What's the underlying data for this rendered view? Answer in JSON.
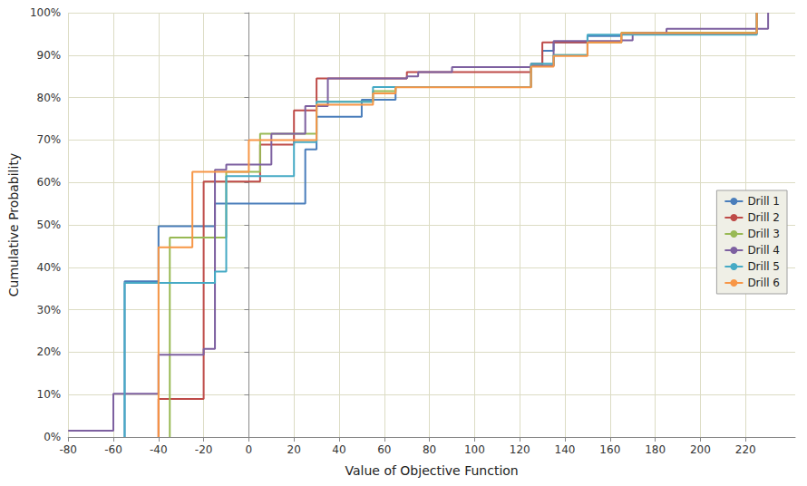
{
  "chart_data": {
    "type": "step_line",
    "x_label": "Value of Objective Function",
    "y_label": "Cumulative Probability",
    "xlim": [
      -80,
      242
    ],
    "xticks": [
      -80,
      -60,
      -40,
      -20,
      0,
      20,
      40,
      60,
      80,
      100,
      120,
      140,
      160,
      180,
      200,
      220
    ],
    "ylim": [
      0,
      100
    ],
    "yticks": [
      {
        "value": 0,
        "label": "0%"
      },
      {
        "value": 10,
        "label": "10%"
      },
      {
        "value": 20,
        "label": "20%"
      },
      {
        "value": 30,
        "label": "30%"
      },
      {
        "value": 40,
        "label": "40%"
      },
      {
        "value": 50,
        "label": "50%"
      },
      {
        "value": 60,
        "label": "60%"
      },
      {
        "value": 70,
        "label": "70%"
      },
      {
        "value": 80,
        "label": "80%"
      },
      {
        "value": 90,
        "label": "90%"
      },
      {
        "value": 100,
        "label": "100%"
      }
    ],
    "grid": true,
    "legend": "right",
    "series": [
      {
        "name": "Drill 1",
        "color": "#4a7ebb",
        "x": [
          -55,
          -55,
          -40,
          -15,
          25,
          30,
          50,
          65,
          125,
          130,
          135,
          150,
          165,
          225
        ],
        "values": [
          0,
          36.7,
          49.7,
          55,
          67.8,
          75.5,
          79.5,
          82.5,
          87.5,
          91,
          93,
          94.5,
          95,
          100
        ]
      },
      {
        "name": "Drill 2",
        "color": "#be4b48",
        "x": [
          -40,
          -40,
          -20,
          5,
          20,
          30,
          70,
          125,
          130,
          165,
          225
        ],
        "values": [
          0,
          9,
          60.2,
          68.9,
          77,
          84.5,
          86,
          88,
          93,
          95.2,
          100
        ]
      },
      {
        "name": "Drill 3",
        "color": "#98b954",
        "x": [
          -35,
          -35,
          -10,
          5,
          30,
          55,
          65,
          125,
          135,
          150,
          165,
          225
        ],
        "values": [
          0,
          47,
          62.5,
          71.5,
          79,
          81.5,
          82.5,
          87.5,
          90,
          93,
          95.3,
          100
        ]
      },
      {
        "name": "Drill 4",
        "color": "#7d60a0",
        "x": [
          -80,
          -60,
          -40,
          -20,
          -15,
          -10,
          10,
          25,
          35,
          70,
          75,
          90,
          125,
          135,
          165,
          170,
          185,
          230
        ],
        "values": [
          1.5,
          10.2,
          19.4,
          20.8,
          63,
          64.2,
          71.5,
          78,
          84.5,
          85,
          86,
          87.2,
          87.5,
          93.3,
          93.5,
          95.2,
          96.2,
          100
        ]
      },
      {
        "name": "Drill 5",
        "color": "#46aac5",
        "x": [
          -55,
          -55,
          -15,
          -10,
          20,
          30,
          55,
          125,
          135,
          150,
          225
        ],
        "values": [
          0,
          36.3,
          39,
          61.5,
          69.5,
          79,
          82.5,
          88,
          90,
          94.8,
          100
        ]
      },
      {
        "name": "Drill 6",
        "color": "#f79646",
        "x": [
          -40,
          -40,
          -25,
          0,
          30,
          55,
          65,
          125,
          135,
          150,
          165,
          225
        ],
        "values": [
          0,
          44.7,
          62.5,
          70,
          78.3,
          81,
          82.4,
          87.3,
          89.8,
          93,
          95.2,
          100
        ]
      }
    ]
  }
}
